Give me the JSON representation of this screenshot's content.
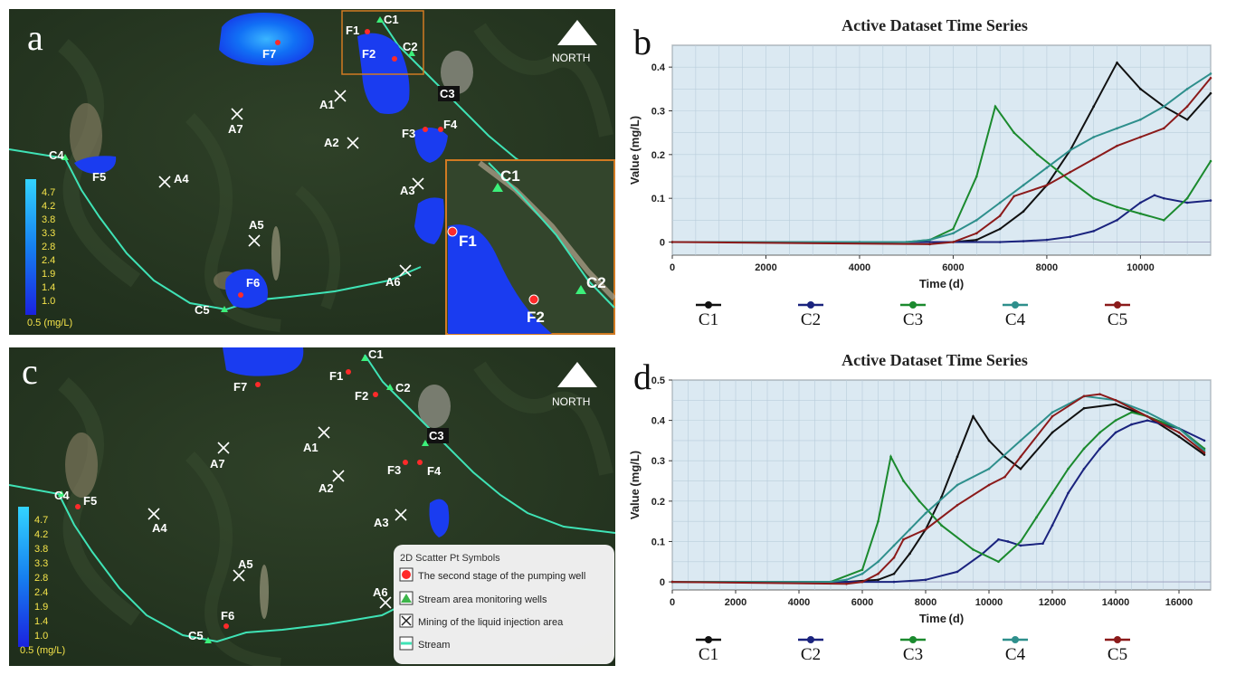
{
  "figure": {
    "panels": {
      "a": "a",
      "b": "b",
      "c": "c",
      "d": "d"
    },
    "north_label": "NORTH"
  },
  "map_a": {
    "wells": [
      "F1",
      "F2",
      "F3",
      "F4",
      "F5",
      "F6",
      "F7"
    ],
    "monitors": [
      "C1",
      "C2",
      "C3",
      "C4",
      "C5"
    ],
    "mining": [
      "A1",
      "A2",
      "A3",
      "A4",
      "A5",
      "A6",
      "A7"
    ],
    "inset_labels": {
      "c1": "C1",
      "c2": "C2",
      "f1": "F1",
      "f2": "F2"
    },
    "colorbar": [
      "4.7",
      "4.2",
      "3.8",
      "3.3",
      "2.8",
      "2.4",
      "1.9",
      "1.4",
      "1.0",
      "0.5 (mg/L)"
    ]
  },
  "map_c": {
    "wells": [
      "F1",
      "F2",
      "F3",
      "F4",
      "F5",
      "F6",
      "F7"
    ],
    "monitors": [
      "C1",
      "C2",
      "C3",
      "C4",
      "C5"
    ],
    "mining": [
      "A1",
      "A2",
      "A3",
      "A4",
      "A5",
      "A6",
      "A7"
    ],
    "colorbar": [
      "4.7",
      "4.2",
      "3.8",
      "3.3",
      "2.8",
      "2.4",
      "1.9",
      "1.4",
      "1.0",
      "0.5 (mg/L)"
    ],
    "legend": {
      "title": "2D Scatter Pt Symbols",
      "items": [
        "The second stage of the pumping well",
        "Stream area monitoring wells",
        "Mining of the liquid injection area",
        "Stream"
      ]
    }
  },
  "chart_data": [
    {
      "type": "line",
      "panel": "b",
      "title": "Active Dataset Time Series",
      "xlabel": "Time (d)",
      "ylabel": "Value (mg/L)",
      "xlim": [
        0,
        11500
      ],
      "ylim": [
        -0.03,
        0.45
      ],
      "xticks": [
        "0",
        "2000",
        "4000",
        "6000",
        "8000",
        "10000"
      ],
      "yticks": [
        "0",
        "0.1",
        "0.2",
        "0.3",
        "0.4"
      ],
      "series": [
        {
          "name": "C1",
          "color": "#111111",
          "x": [
            0,
            4000,
            5500,
            6000,
            6500,
            7000,
            7500,
            8000,
            8500,
            9000,
            9500,
            10000,
            10500,
            11000,
            11500
          ],
          "values": [
            0,
            0,
            0,
            0,
            0.005,
            0.03,
            0.07,
            0.13,
            0.21,
            0.31,
            0.41,
            0.35,
            0.31,
            0.28,
            0.34
          ]
        },
        {
          "name": "C2",
          "color": "#1a237e",
          "x": [
            0,
            7000,
            7500,
            8000,
            8500,
            9000,
            9500,
            10000,
            10300,
            10500,
            11000,
            11500
          ],
          "values": [
            0,
            0,
            0.002,
            0.005,
            0.012,
            0.025,
            0.05,
            0.09,
            0.107,
            0.1,
            0.09,
            0.095
          ]
        },
        {
          "name": "C3",
          "color": "#1b8a2e",
          "x": [
            0,
            5000,
            5500,
            6000,
            6500,
            6900,
            7300,
            7800,
            8500,
            9000,
            9500,
            10000,
            10500,
            11000,
            11500
          ],
          "values": [
            0,
            0,
            0.005,
            0.03,
            0.15,
            0.31,
            0.25,
            0.2,
            0.14,
            0.1,
            0.08,
            0.065,
            0.05,
            0.1,
            0.185
          ]
        },
        {
          "name": "C4",
          "color": "#2e8f8c",
          "x": [
            0,
            5000,
            5500,
            6000,
            6500,
            7000,
            7500,
            8000,
            8500,
            9000,
            9500,
            10000,
            10500,
            11000,
            11500
          ],
          "values": [
            0,
            0,
            0.005,
            0.02,
            0.05,
            0.09,
            0.13,
            0.17,
            0.21,
            0.24,
            0.26,
            0.28,
            0.31,
            0.35,
            0.385
          ]
        },
        {
          "name": "C5",
          "color": "#8b1a1a",
          "x": [
            0,
            5500,
            6000,
            6500,
            7000,
            7300,
            8000,
            8500,
            9000,
            9500,
            10000,
            10500,
            11000,
            11500
          ],
          "values": [
            0,
            -0.005,
            0,
            0.02,
            0.06,
            0.105,
            0.13,
            0.16,
            0.19,
            0.22,
            0.24,
            0.26,
            0.31,
            0.375
          ]
        }
      ]
    },
    {
      "type": "line",
      "panel": "d",
      "title": "Active Dataset Time Series",
      "xlabel": "Time (d)",
      "ylabel": "Value (mg/L)",
      "xlim": [
        0,
        17000
      ],
      "ylim": [
        -0.02,
        0.5
      ],
      "xticks": [
        "0",
        "2000",
        "4000",
        "6000",
        "8000",
        "10000",
        "12000",
        "14000",
        "16000"
      ],
      "yticks": [
        "0",
        "0.1",
        "0.2",
        "0.3",
        "0.4",
        "0.5"
      ],
      "series": [
        {
          "name": "C1",
          "color": "#111111",
          "x": [
            0,
            5500,
            6500,
            7000,
            7500,
            8000,
            8500,
            9000,
            9500,
            10000,
            10500,
            11000,
            12000,
            13000,
            14000,
            15000,
            16000,
            16800
          ],
          "values": [
            0,
            0,
            0.005,
            0.02,
            0.07,
            0.13,
            0.21,
            0.31,
            0.41,
            0.35,
            0.31,
            0.28,
            0.37,
            0.43,
            0.44,
            0.41,
            0.36,
            0.315
          ]
        },
        {
          "name": "C2",
          "color": "#1a237e",
          "x": [
            0,
            7000,
            8000,
            9000,
            9800,
            10300,
            10600,
            11000,
            11700,
            12000,
            12500,
            13000,
            13500,
            14000,
            14500,
            15000,
            15500,
            16000,
            16800
          ],
          "values": [
            0,
            0,
            0.005,
            0.025,
            0.07,
            0.105,
            0.1,
            0.09,
            0.095,
            0.14,
            0.22,
            0.28,
            0.33,
            0.37,
            0.39,
            0.4,
            0.39,
            0.38,
            0.35
          ]
        },
        {
          "name": "C3",
          "color": "#1b8a2e",
          "x": [
            0,
            5000,
            6000,
            6500,
            6900,
            7300,
            7800,
            8500,
            9500,
            10300,
            11000,
            11500,
            12000,
            12500,
            13000,
            13500,
            14000,
            14500,
            15000,
            16000,
            16800
          ],
          "values": [
            0,
            0,
            0.03,
            0.15,
            0.31,
            0.25,
            0.2,
            0.14,
            0.08,
            0.05,
            0.1,
            0.16,
            0.22,
            0.28,
            0.33,
            0.37,
            0.4,
            0.42,
            0.41,
            0.38,
            0.33
          ]
        },
        {
          "name": "C4",
          "color": "#2e8f8c",
          "x": [
            0,
            5000,
            5500,
            6000,
            6500,
            7000,
            7500,
            8000,
            9000,
            10000,
            11000,
            12000,
            13000,
            14000,
            15000,
            16000,
            16800
          ],
          "values": [
            0,
            0,
            0.005,
            0.02,
            0.05,
            0.09,
            0.13,
            0.17,
            0.24,
            0.28,
            0.35,
            0.42,
            0.46,
            0.45,
            0.42,
            0.38,
            0.325
          ]
        },
        {
          "name": "C5",
          "color": "#8b1a1a",
          "x": [
            0,
            5500,
            6000,
            6500,
            7000,
            7300,
            8000,
            9000,
            10000,
            10500,
            11000,
            12000,
            13000,
            13500,
            14000,
            15000,
            16000,
            16800
          ],
          "values": [
            0,
            -0.005,
            0,
            0.02,
            0.06,
            0.105,
            0.13,
            0.19,
            0.24,
            0.26,
            0.31,
            0.41,
            0.46,
            0.465,
            0.45,
            0.41,
            0.37,
            0.32
          ]
        }
      ]
    }
  ]
}
